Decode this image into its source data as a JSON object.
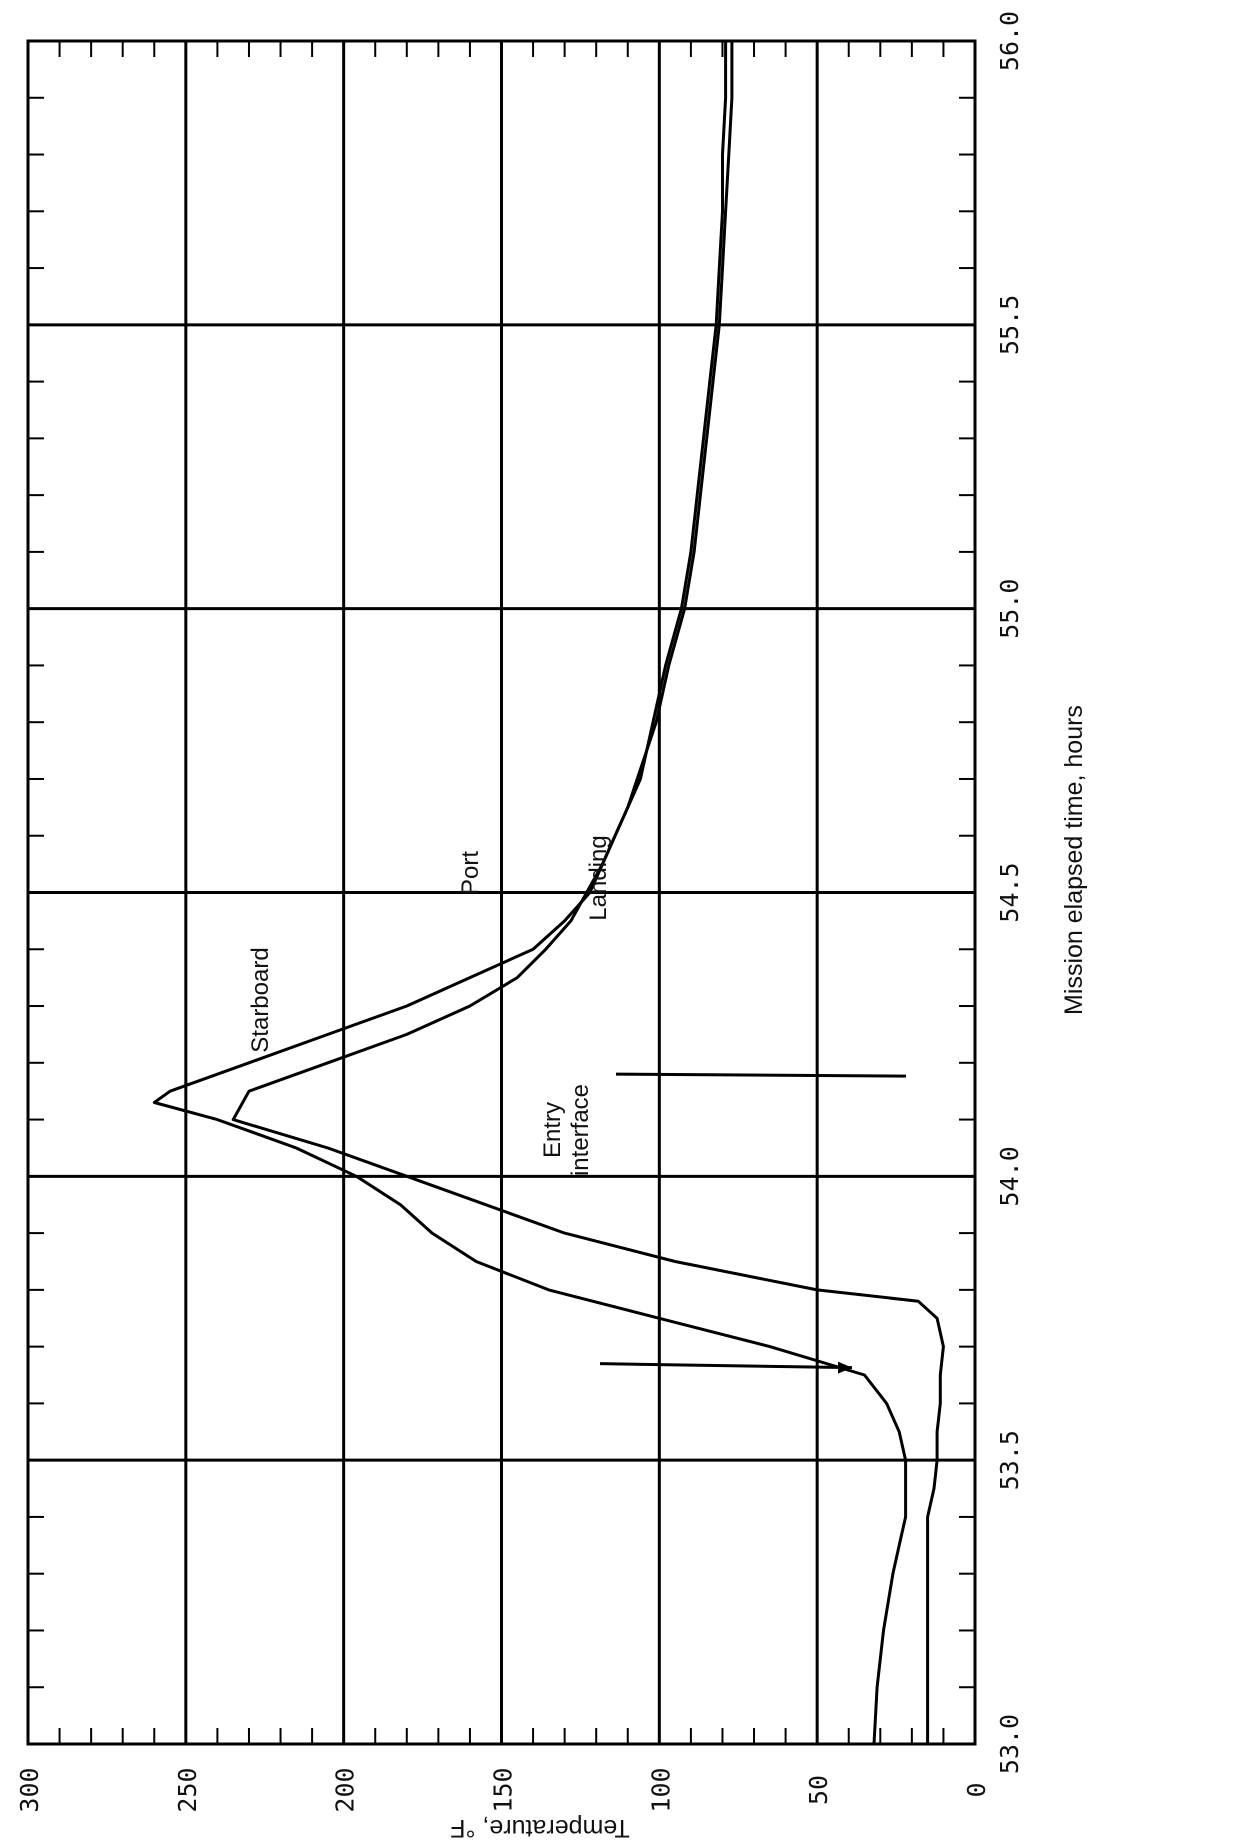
{
  "chart_data": {
    "type": "line",
    "title": "",
    "xlabel": "Mission elapsed time, hours",
    "ylabel": "Temperature, °F",
    "xlim": [
      53.0,
      56.0
    ],
    "ylim": [
      0,
      300
    ],
    "x_ticks": [
      "53.0",
      "53.5",
      "54.0",
      "54.5",
      "55.0",
      "55.5",
      "56.0"
    ],
    "x_tick_values": [
      53.0,
      53.5,
      54.0,
      54.5,
      55.0,
      55.5,
      56.0
    ],
    "y_ticks": [
      "0",
      "50",
      "100",
      "150",
      "200",
      "250",
      "300"
    ],
    "y_tick_values": [
      0,
      50,
      100,
      150,
      200,
      250,
      300
    ],
    "grid": true,
    "series": [
      {
        "name": "Starboard",
        "x": [
          53.0,
          53.1,
          53.2,
          53.3,
          53.35,
          53.4,
          53.45,
          53.5,
          53.55,
          53.6,
          53.65,
          53.7,
          53.75,
          53.8,
          53.85,
          53.9,
          53.95,
          54.0,
          54.05,
          54.1,
          54.13,
          54.15,
          54.2,
          54.25,
          54.3,
          54.35,
          54.4,
          54.45,
          54.5,
          54.55,
          54.6,
          54.65,
          54.7,
          54.75,
          54.8,
          54.85,
          54.9,
          55.0,
          55.1,
          55.2,
          55.3,
          55.4,
          55.5,
          55.6,
          55.7,
          55.8,
          55.9,
          56.0
        ],
        "values": [
          32,
          31,
          29,
          26,
          24,
          22,
          22,
          22,
          24,
          28,
          35,
          65,
          100,
          135,
          158,
          172,
          182,
          196,
          215,
          240,
          260,
          255,
          230,
          205,
          180,
          160,
          140,
          130,
          122,
          118,
          114,
          110,
          106,
          104,
          102,
          100,
          98,
          93,
          90,
          88,
          86,
          84,
          82,
          81,
          80,
          80,
          79,
          79
        ]
      },
      {
        "name": "Port",
        "x": [
          53.0,
          53.1,
          53.2,
          53.3,
          53.4,
          53.45,
          53.5,
          53.55,
          53.6,
          53.65,
          53.7,
          53.75,
          53.78,
          53.8,
          53.85,
          53.9,
          53.95,
          54.0,
          54.05,
          54.1,
          54.15,
          54.2,
          54.25,
          54.3,
          54.35,
          54.4,
          54.45,
          54.5,
          54.55,
          54.6,
          54.65,
          54.7,
          54.75,
          54.8,
          54.85,
          54.9,
          55.0,
          55.1,
          55.2,
          55.3,
          55.4,
          55.5,
          55.6,
          55.7,
          55.8,
          55.9,
          56.0
        ],
        "values": [
          15,
          15,
          15,
          15,
          15,
          13,
          12,
          12,
          11,
          11,
          10,
          12,
          18,
          50,
          95,
          130,
          155,
          180,
          205,
          235,
          230,
          205,
          180,
          160,
          145,
          136,
          128,
          123,
          118,
          114,
          110,
          107,
          104,
          101,
          99,
          97,
          92,
          89,
          87,
          85,
          83,
          81,
          80,
          79,
          78,
          77,
          77
        ]
      }
    ],
    "annotations": {
      "starboard": "Starboard",
      "port": "Port",
      "landing": "Landing",
      "entry_line1": "Entry",
      "entry_line2": "interface"
    },
    "events": [
      {
        "name": "Entry interface",
        "x": 53.67
      },
      {
        "name": "Landing",
        "x": 54.18
      }
    ]
  }
}
